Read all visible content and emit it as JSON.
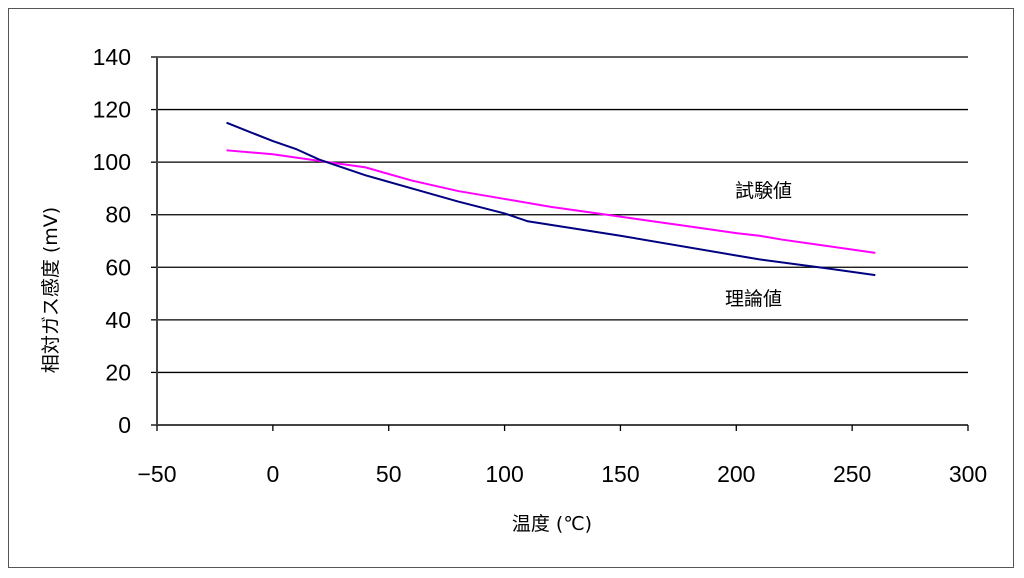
{
  "chart_data": {
    "type": "line",
    "title": "",
    "xlabel": "温度 (℃)",
    "ylabel": "相対ガス感度 (mV)",
    "xlim": [
      -50,
      300
    ],
    "ylim": [
      0,
      140
    ],
    "xticks": [
      -50,
      0,
      50,
      100,
      150,
      200,
      250,
      300
    ],
    "xtick_labels": [
      "−50",
      "0",
      "50",
      "100",
      "150",
      "200",
      "250",
      "300"
    ],
    "yticks": [
      0,
      20,
      40,
      60,
      80,
      100,
      120,
      140
    ],
    "ytick_labels": [
      "0",
      "20",
      "40",
      "60",
      "80",
      "100",
      "120",
      "140"
    ],
    "grid": "horizontal",
    "legend": "inline labels",
    "series": [
      {
        "name": "試験値",
        "color": "#ff00ff",
        "x": [
          -20,
          0,
          20,
          40,
          60,
          80,
          100,
          120,
          140,
          160,
          180,
          200,
          210,
          220,
          240,
          260
        ],
        "y": [
          104.5,
          103,
          100.5,
          98,
          93,
          89,
          86,
          83,
          80.5,
          78,
          75.5,
          73,
          72,
          70.5,
          68,
          65.5
        ]
      },
      {
        "name": "理論値",
        "color": "#000080",
        "x": [
          -20,
          0,
          10,
          20,
          40,
          60,
          80,
          100,
          110,
          150,
          200,
          210,
          240,
          260
        ],
        "y": [
          115,
          108,
          105,
          101,
          95,
          90,
          85,
          80.5,
          77.5,
          72,
          64.5,
          63,
          59.5,
          57
        ]
      }
    ]
  }
}
